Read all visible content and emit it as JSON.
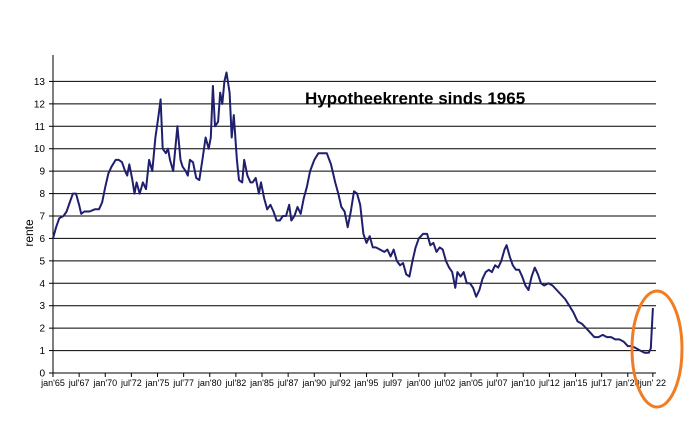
{
  "chart_data": {
    "type": "line",
    "title": "Hypotheekrente sinds 1965",
    "xlabel": "",
    "ylabel": "rente",
    "ylim": [
      0,
      14
    ],
    "xlim": [
      1965,
      2022.7
    ],
    "yticks": [
      0,
      1,
      2,
      3,
      4,
      5,
      6,
      7,
      8,
      9,
      10,
      11,
      12,
      13
    ],
    "grid": "horizontal",
    "xtick_labels": [
      {
        "label": "jan'65",
        "x": 1965.0
      },
      {
        "label": "jul'67",
        "x": 1967.5
      },
      {
        "label": "jan'70",
        "x": 1970.0
      },
      {
        "label": "jul'72",
        "x": 1972.5
      },
      {
        "label": "jan'75",
        "x": 1975.0
      },
      {
        "label": "jul'77",
        "x": 1977.5
      },
      {
        "label": "jan'80",
        "x": 1980.0
      },
      {
        "label": "jul'82",
        "x": 1982.5
      },
      {
        "label": "jan'85",
        "x": 1985.0
      },
      {
        "label": "jul'87",
        "x": 1987.5
      },
      {
        "label": "jan'90",
        "x": 1990.0
      },
      {
        "label": "jul'92",
        "x": 1992.5
      },
      {
        "label": "jan'95",
        "x": 1995.0
      },
      {
        "label": "jul97",
        "x": 1997.5
      },
      {
        "label": "jan'00",
        "x": 2000.0
      },
      {
        "label": "jul'02",
        "x": 2002.5
      },
      {
        "label": "jan'05",
        "x": 2005.0
      },
      {
        "label": "jul'07",
        "x": 2007.5
      },
      {
        "label": "jan'10",
        "x": 2010.0
      },
      {
        "label": "jul'12",
        "x": 2012.5
      },
      {
        "label": "jan'15",
        "x": 2015.0
      },
      {
        "label": "jul'17",
        "x": 2017.5
      },
      {
        "label": "jan'20",
        "x": 2020.0
      },
      {
        "label": "jun' 22",
        "x": 2022.4
      }
    ],
    "series": [
      {
        "color": "#1f1f6e",
        "points": [
          [
            1965.0,
            6.0
          ],
          [
            1965.3,
            6.5
          ],
          [
            1965.6,
            6.9
          ],
          [
            1966.0,
            7.0
          ],
          [
            1966.3,
            7.2
          ],
          [
            1966.6,
            7.6
          ],
          [
            1966.9,
            8.0
          ],
          [
            1967.2,
            8.0
          ],
          [
            1967.5,
            7.5
          ],
          [
            1967.7,
            7.1
          ],
          [
            1968.0,
            7.2
          ],
          [
            1968.5,
            7.2
          ],
          [
            1969.0,
            7.3
          ],
          [
            1969.4,
            7.3
          ],
          [
            1969.7,
            7.6
          ],
          [
            1970.0,
            8.3
          ],
          [
            1970.3,
            8.9
          ],
          [
            1970.6,
            9.2
          ],
          [
            1971.0,
            9.5
          ],
          [
            1971.3,
            9.5
          ],
          [
            1971.6,
            9.4
          ],
          [
            1971.9,
            9.0
          ],
          [
            1972.1,
            8.8
          ],
          [
            1972.3,
            9.3
          ],
          [
            1972.6,
            8.6
          ],
          [
            1972.8,
            8.0
          ],
          [
            1973.0,
            8.5
          ],
          [
            1973.3,
            8.0
          ],
          [
            1973.6,
            8.5
          ],
          [
            1973.9,
            8.2
          ],
          [
            1974.2,
            9.5
          ],
          [
            1974.5,
            9.0
          ],
          [
            1974.8,
            10.5
          ],
          [
            1975.1,
            11.5
          ],
          [
            1975.3,
            12.2
          ],
          [
            1975.5,
            10.0
          ],
          [
            1975.8,
            9.8
          ],
          [
            1976.0,
            10.0
          ],
          [
            1976.2,
            9.5
          ],
          [
            1976.5,
            9.0
          ],
          [
            1976.7,
            10.0
          ],
          [
            1976.9,
            11.0
          ],
          [
            1977.2,
            9.5
          ],
          [
            1977.4,
            9.2
          ],
          [
            1977.7,
            9.0
          ],
          [
            1977.9,
            8.8
          ],
          [
            1978.1,
            9.5
          ],
          [
            1978.4,
            9.4
          ],
          [
            1978.7,
            8.7
          ],
          [
            1979.0,
            8.6
          ],
          [
            1979.3,
            9.5
          ],
          [
            1979.6,
            10.5
          ],
          [
            1979.9,
            10.0
          ],
          [
            1980.1,
            10.5
          ],
          [
            1980.3,
            12.8
          ],
          [
            1980.5,
            11.0
          ],
          [
            1980.8,
            11.2
          ],
          [
            1981.0,
            12.5
          ],
          [
            1981.2,
            12.0
          ],
          [
            1981.4,
            13.0
          ],
          [
            1981.6,
            13.4
          ],
          [
            1981.9,
            12.5
          ],
          [
            1982.1,
            10.5
          ],
          [
            1982.3,
            11.5
          ],
          [
            1982.6,
            9.5
          ],
          [
            1982.8,
            8.6
          ],
          [
            1983.1,
            8.5
          ],
          [
            1983.3,
            9.5
          ],
          [
            1983.6,
            8.8
          ],
          [
            1983.9,
            8.5
          ],
          [
            1984.1,
            8.5
          ],
          [
            1984.4,
            8.7
          ],
          [
            1984.7,
            8.0
          ],
          [
            1984.9,
            8.5
          ],
          [
            1985.2,
            7.8
          ],
          [
            1985.5,
            7.3
          ],
          [
            1985.8,
            7.5
          ],
          [
            1986.1,
            7.2
          ],
          [
            1986.4,
            6.8
          ],
          [
            1986.7,
            6.8
          ],
          [
            1987.0,
            7.0
          ],
          [
            1987.3,
            7.0
          ],
          [
            1987.6,
            7.5
          ],
          [
            1987.8,
            6.8
          ],
          [
            1988.1,
            7.0
          ],
          [
            1988.4,
            7.4
          ],
          [
            1988.7,
            7.1
          ],
          [
            1989.0,
            7.8
          ],
          [
            1989.3,
            8.3
          ],
          [
            1989.6,
            9.0
          ],
          [
            1990.0,
            9.5
          ],
          [
            1990.4,
            9.8
          ],
          [
            1990.8,
            9.8
          ],
          [
            1991.2,
            9.8
          ],
          [
            1991.6,
            9.3
          ],
          [
            1992.0,
            8.5
          ],
          [
            1992.3,
            8.0
          ],
          [
            1992.6,
            7.4
          ],
          [
            1992.9,
            7.2
          ],
          [
            1993.2,
            6.5
          ],
          [
            1993.5,
            7.2
          ],
          [
            1993.8,
            8.1
          ],
          [
            1994.1,
            8.0
          ],
          [
            1994.4,
            7.5
          ],
          [
            1994.7,
            6.2
          ],
          [
            1995.0,
            5.8
          ],
          [
            1995.3,
            6.1
          ],
          [
            1995.6,
            5.6
          ],
          [
            1995.9,
            5.6
          ],
          [
            1996.3,
            5.5
          ],
          [
            1996.7,
            5.4
          ],
          [
            1997.0,
            5.5
          ],
          [
            1997.3,
            5.2
          ],
          [
            1997.6,
            5.5
          ],
          [
            1997.9,
            5.0
          ],
          [
            1998.2,
            4.8
          ],
          [
            1998.5,
            4.9
          ],
          [
            1998.8,
            4.4
          ],
          [
            1999.1,
            4.3
          ],
          [
            1999.4,
            5.0
          ],
          [
            1999.7,
            5.6
          ],
          [
            2000.0,
            6.0
          ],
          [
            2000.4,
            6.2
          ],
          [
            2000.8,
            6.2
          ],
          [
            2001.1,
            5.7
          ],
          [
            2001.4,
            5.8
          ],
          [
            2001.7,
            5.4
          ],
          [
            2002.0,
            5.6
          ],
          [
            2002.3,
            5.5
          ],
          [
            2002.6,
            5.0
          ],
          [
            2002.9,
            4.7
          ],
          [
            2003.2,
            4.5
          ],
          [
            2003.5,
            3.8
          ],
          [
            2003.7,
            4.5
          ],
          [
            2004.0,
            4.3
          ],
          [
            2004.3,
            4.5
          ],
          [
            2004.6,
            4.0
          ],
          [
            2004.9,
            4.0
          ],
          [
            2005.2,
            3.8
          ],
          [
            2005.5,
            3.4
          ],
          [
            2005.8,
            3.7
          ],
          [
            2006.1,
            4.2
          ],
          [
            2006.4,
            4.5
          ],
          [
            2006.7,
            4.6
          ],
          [
            2007.0,
            4.5
          ],
          [
            2007.3,
            4.8
          ],
          [
            2007.6,
            4.7
          ],
          [
            2007.9,
            5.0
          ],
          [
            2008.2,
            5.5
          ],
          [
            2008.4,
            5.7
          ],
          [
            2008.7,
            5.2
          ],
          [
            2009.0,
            4.8
          ],
          [
            2009.3,
            4.6
          ],
          [
            2009.6,
            4.6
          ],
          [
            2009.9,
            4.3
          ],
          [
            2010.2,
            3.9
          ],
          [
            2010.5,
            3.7
          ],
          [
            2010.8,
            4.3
          ],
          [
            2011.1,
            4.7
          ],
          [
            2011.4,
            4.4
          ],
          [
            2011.7,
            4.0
          ],
          [
            2012.0,
            3.9
          ],
          [
            2012.4,
            4.0
          ],
          [
            2012.8,
            3.9
          ],
          [
            2013.2,
            3.7
          ],
          [
            2013.6,
            3.5
          ],
          [
            2014.0,
            3.3
          ],
          [
            2014.4,
            3.0
          ],
          [
            2014.8,
            2.7
          ],
          [
            2015.2,
            2.3
          ],
          [
            2015.6,
            2.2
          ],
          [
            2016.0,
            2.0
          ],
          [
            2016.4,
            1.8
          ],
          [
            2016.8,
            1.6
          ],
          [
            2017.2,
            1.6
          ],
          [
            2017.6,
            1.7
          ],
          [
            2018.0,
            1.6
          ],
          [
            2018.4,
            1.6
          ],
          [
            2018.8,
            1.5
          ],
          [
            2019.2,
            1.5
          ],
          [
            2019.6,
            1.4
          ],
          [
            2020.0,
            1.2
          ],
          [
            2020.4,
            1.2
          ],
          [
            2020.8,
            1.1
          ],
          [
            2021.2,
            1.0
          ],
          [
            2021.6,
            0.9
          ],
          [
            2022.0,
            0.9
          ],
          [
            2022.2,
            1.1
          ],
          [
            2022.4,
            2.9
          ]
        ]
      }
    ]
  },
  "annotations": {
    "highlight_circle_color": "#f07d23"
  }
}
